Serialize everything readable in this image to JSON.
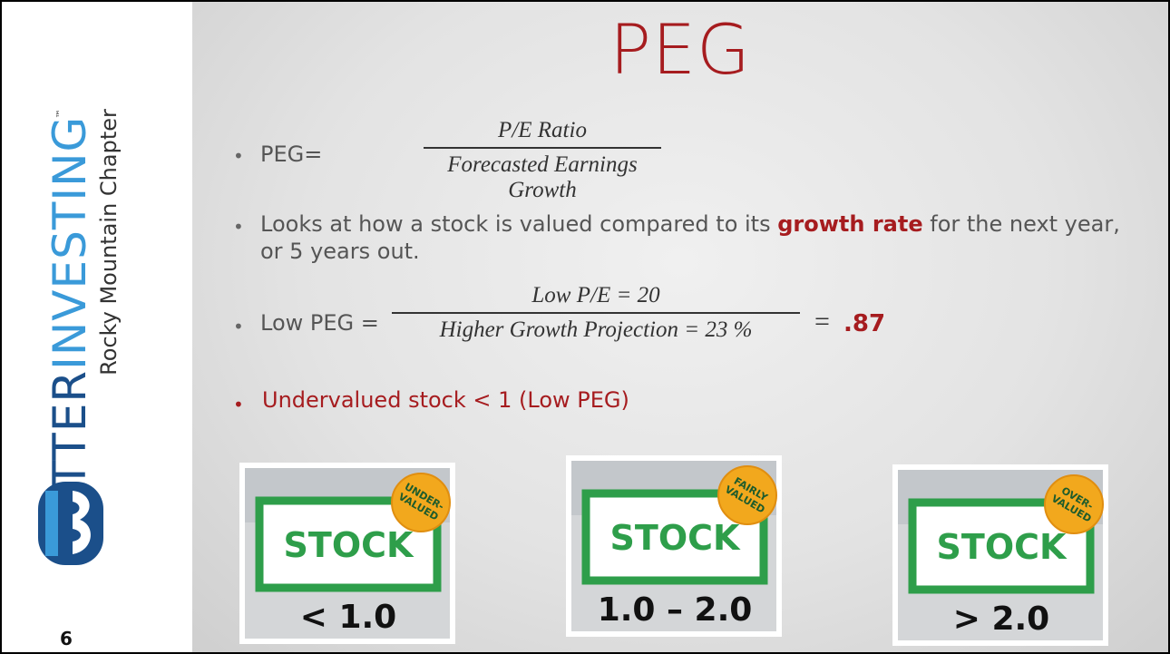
{
  "sidebar": {
    "brand": [
      "BETTER",
      "INVESTING"
    ],
    "trademark": "™",
    "chapter": "Rocky Mountain Chapter",
    "page_number": "6"
  },
  "slide": {
    "title": "PEG",
    "formula": {
      "label": "PEG=",
      "numerator": "P/E Ratio",
      "denominator": "Forecasted Earnings Growth"
    },
    "description": [
      "Looks at how a stock is valued compared to its ",
      "growth rate",
      " for the next year, or 5 years out."
    ],
    "example": {
      "label": "Low PEG =",
      "numerator": "Low P/E  = 20",
      "denominator": "Higher Growth Projection  = 23 %",
      "equals": "=",
      "result": ".87"
    },
    "conclusion": "Undervalued stock < 1 (Low PEG)",
    "cards": [
      {
        "badge": [
          "UNDER-",
          "VALUED"
        ],
        "stock": "STOCK",
        "range": "< 1.0"
      },
      {
        "badge": [
          "FAIRLY",
          "VALUED"
        ],
        "stock": "STOCK",
        "range": "1.0 – 2.0"
      },
      {
        "badge": [
          "OVER-",
          "VALUED"
        ],
        "stock": "STOCK",
        "range": "> 2.0"
      }
    ]
  }
}
